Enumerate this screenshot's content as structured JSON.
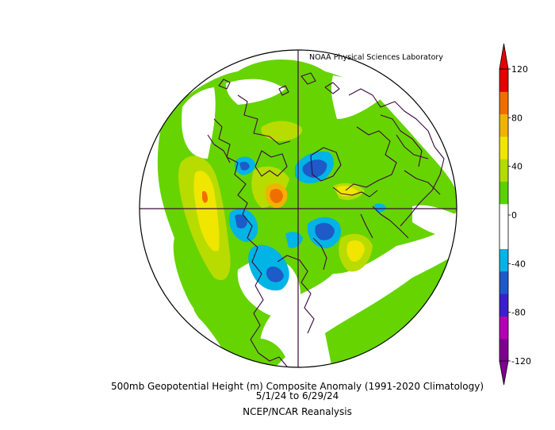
{
  "credit": "NOAA Physical Sciences Laboratory",
  "caption": {
    "line1": "500mb Geopotential Height (m) Composite Anomaly (1991-2020 Climatology)",
    "line2": "5/1/24   to 6/29/24",
    "line3": "NCEP/NCAR Reanalysis"
  },
  "colorbar": {
    "tick_labels": [
      "120",
      "80",
      "40",
      "0",
      "-40",
      "-80",
      "-120"
    ],
    "colors": [
      "#7f0090",
      "#b400b4",
      "#3c1ed2",
      "#1e5ac8",
      "#00b4e6",
      "#ffffff",
      "#ffffff",
      "#5ad200",
      "#b4dc00",
      "#f0e600",
      "#f0b400",
      "#f06e00",
      "#e60000"
    ]
  },
  "map": {
    "projection": "north-polar-stereographic",
    "field": "500mb geopotential height anomaly",
    "units": "m",
    "coastline_color": "#3c0a3c",
    "positive_anomaly_color": "#66d400",
    "negative_anomaly_color": "#00aee8"
  }
}
